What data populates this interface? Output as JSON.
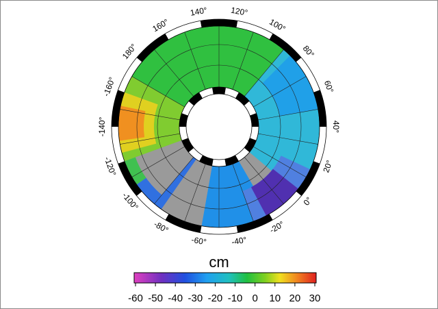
{
  "map": {
    "longitude_labels": [
      "140°",
      "120°",
      "100°",
      "80°",
      "60°",
      "40°",
      "20°",
      "0°",
      "-20°",
      "-40°",
      "-60°",
      "-80°",
      "-100°",
      "-120°",
      "-140°",
      "-160°",
      "180°",
      "160°"
    ]
  },
  "colorbar": {
    "label": "cm",
    "ticks": [
      -60,
      -50,
      -40,
      -30,
      -20,
      -10,
      0,
      10,
      20,
      30
    ]
  }
}
